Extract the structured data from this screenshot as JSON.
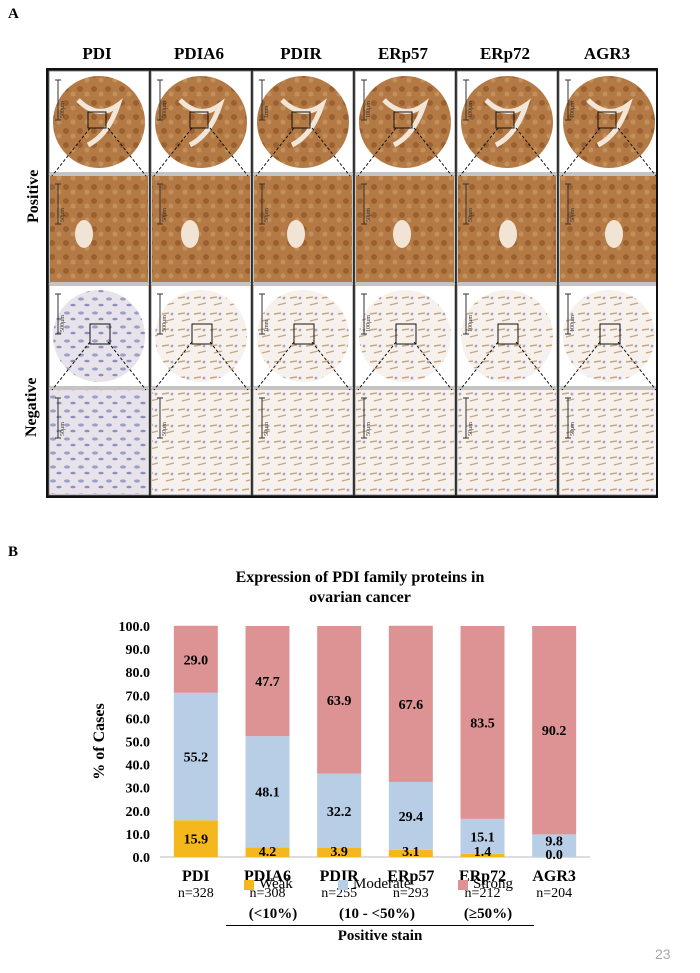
{
  "panel_a": {
    "letter": "A",
    "proteins": [
      "PDI",
      "PDIA6",
      "PDIR",
      "ERp57",
      "ERp72",
      "AGR3"
    ],
    "rows": [
      "Positive",
      "Negative"
    ],
    "colors": {
      "strong_stain": "#a86a35",
      "weak_stain": "#e6d7c6",
      "hematoxylin": "#9aa0c8"
    },
    "scale_labels_tma": [
      "500μm",
      "500μm",
      "1mm",
      "100μm",
      "100μm",
      "100μm"
    ],
    "scale_labels_zoom": [
      "50μm",
      "50μm",
      "50μm",
      "50μm",
      "50μm",
      "50μm"
    ]
  },
  "panel_b": {
    "letter": "B",
    "page_number": "23",
    "legend": [
      "Weak",
      "Moderate",
      "Strong"
    ],
    "bracket_labels": [
      "(<10%)",
      "(10 - <50%)",
      "(≥50%)"
    ],
    "group_label": "Positive stain"
  },
  "chart_data": {
    "type": "bar",
    "stacked": true,
    "title": "Expression of PDI family proteins in ovarian cancer",
    "title_lines": [
      "Expression of PDI family proteins in",
      "ovarian cancer"
    ],
    "ylabel": "% of Cases",
    "xlabel": "",
    "ylim": [
      0,
      100
    ],
    "yticks": [
      "0.0",
      "10.0",
      "20.0",
      "30.0",
      "40.0",
      "50.0",
      "60.0",
      "70.0",
      "80.0",
      "90.0",
      "100.0"
    ],
    "categories": [
      "PDI",
      "PDIA6",
      "PDIR",
      "ERp57",
      "ERp72",
      "AGR3"
    ],
    "sample_sizes": [
      "n=328",
      "n=308",
      "n=255",
      "n=293",
      "n=212",
      "n=204"
    ],
    "series": [
      {
        "name": "Weak",
        "color": "#f5b81c",
        "values": [
          15.9,
          4.2,
          3.9,
          3.1,
          1.4,
          0.0
        ],
        "labels": [
          "15.9",
          "4.2",
          "3.9",
          "3.1",
          "1.4",
          "0.0"
        ]
      },
      {
        "name": "Moderate",
        "color": "#b8cde6",
        "values": [
          55.2,
          48.1,
          32.2,
          29.4,
          15.1,
          9.8
        ],
        "labels": [
          "55.2",
          "48.1",
          "32.2",
          "29.4",
          "15.1",
          "9.8"
        ]
      },
      {
        "name": "Strong",
        "color": "#dd9294",
        "values": [
          29.0,
          47.7,
          63.9,
          67.6,
          83.5,
          90.2
        ],
        "labels": [
          "29.0",
          "47.7",
          "63.9",
          "67.6",
          "83.5",
          "90.2"
        ]
      }
    ]
  }
}
